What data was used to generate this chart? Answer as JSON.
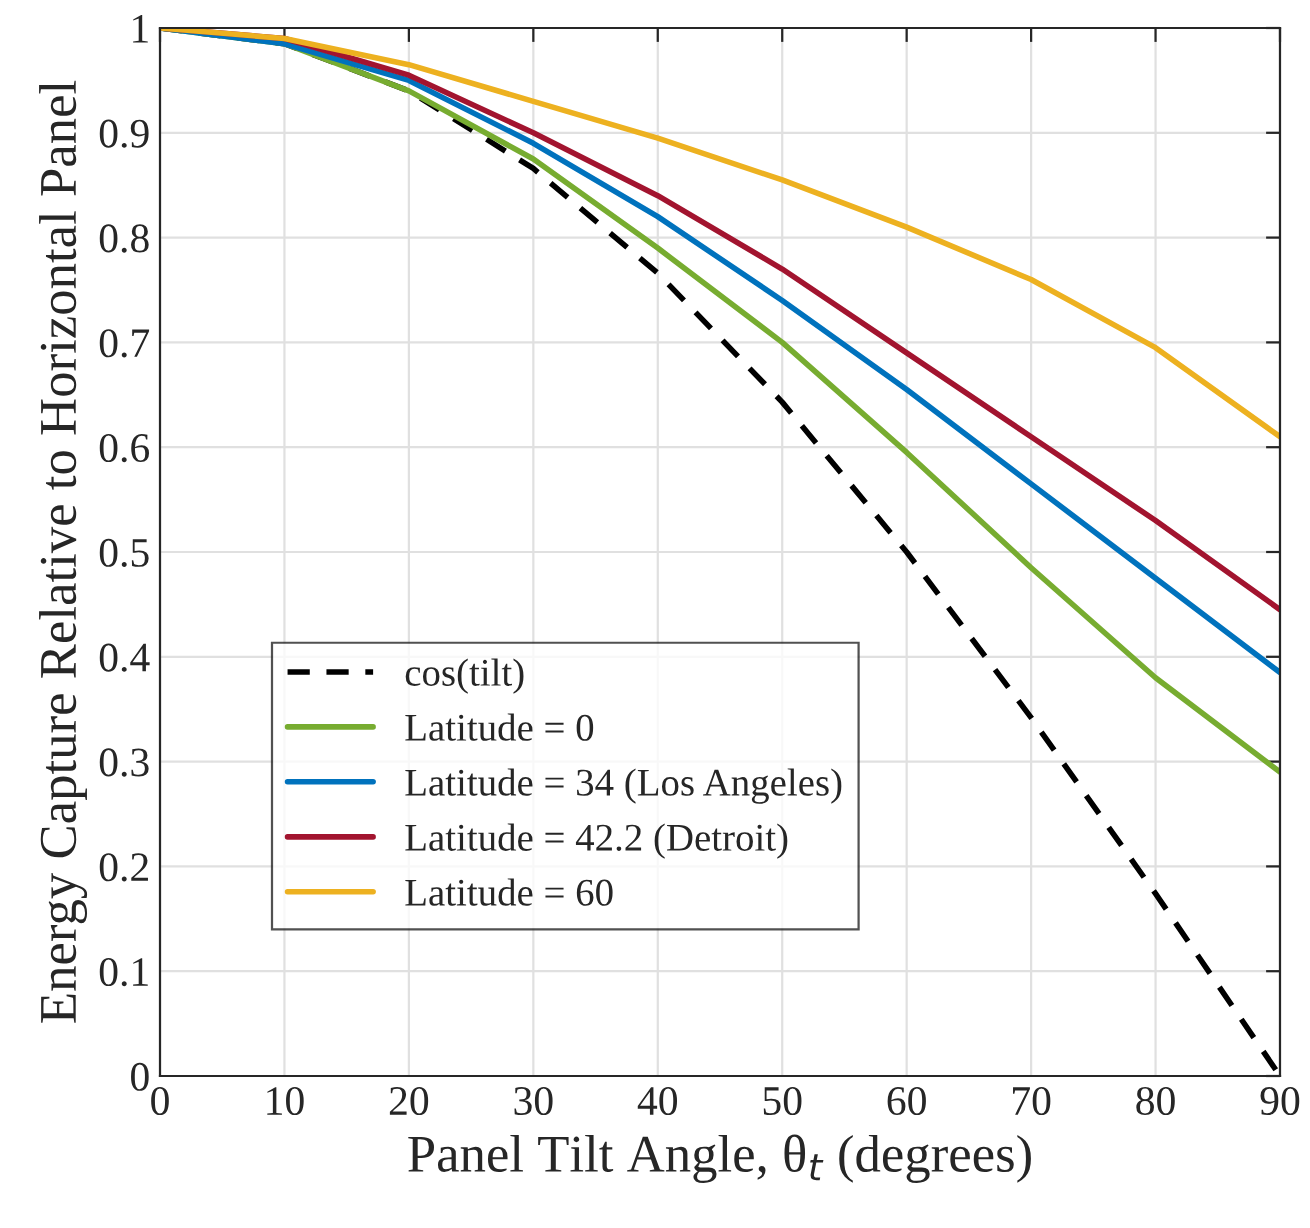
{
  "chart_data": {
    "type": "line",
    "xlabel": "Panel Tilt Angle, θ$_{t}$ (degrees)",
    "ylabel": "Energy Capture Relative to Horizontal Panel",
    "x": [
      0,
      10,
      20,
      30,
      40,
      50,
      60,
      70,
      80,
      90
    ],
    "series": [
      {
        "name": "cos(tilt)",
        "color": "#000000",
        "line_style": "dashed",
        "values": [
          1,
          0.985,
          0.94,
          0.866,
          0.766,
          0.643,
          0.5,
          0.342,
          0.174,
          0.0
        ]
      },
      {
        "name": "Latitude = 0",
        "color": "#77ac30",
        "values": [
          1,
          0.985,
          0.94,
          0.875,
          0.79,
          0.7,
          0.595,
          0.485,
          0.38,
          0.29
        ]
      },
      {
        "name": "Latitude = 34 (Los Angeles)",
        "color": "#0072bd",
        "values": [
          1,
          0.985,
          0.95,
          0.89,
          0.82,
          0.74,
          0.655,
          0.565,
          0.475,
          0.385
        ]
      },
      {
        "name": "Latitude = 42.2 (Detroit)",
        "color": "#a2142f",
        "values": [
          1,
          0.99,
          0.955,
          0.9,
          0.84,
          0.77,
          0.69,
          0.61,
          0.53,
          0.445
        ]
      },
      {
        "name": "Latitude = 60",
        "color": "#edb120",
        "values": [
          1,
          0.99,
          0.965,
          0.93,
          0.895,
          0.855,
          0.81,
          0.76,
          0.695,
          0.61
        ]
      }
    ],
    "xlim": [
      0,
      90
    ],
    "xticks": [
      0,
      10,
      20,
      30,
      40,
      50,
      60,
      70,
      80,
      90
    ],
    "ylim": [
      0,
      1
    ],
    "yticks": [
      0,
      0.1,
      0.2,
      0.3,
      0.4,
      0.5,
      0.6,
      0.7,
      0.8,
      0.9,
      1
    ],
    "grid": true,
    "legend": "bottom left",
    "line_style": "solid"
  }
}
